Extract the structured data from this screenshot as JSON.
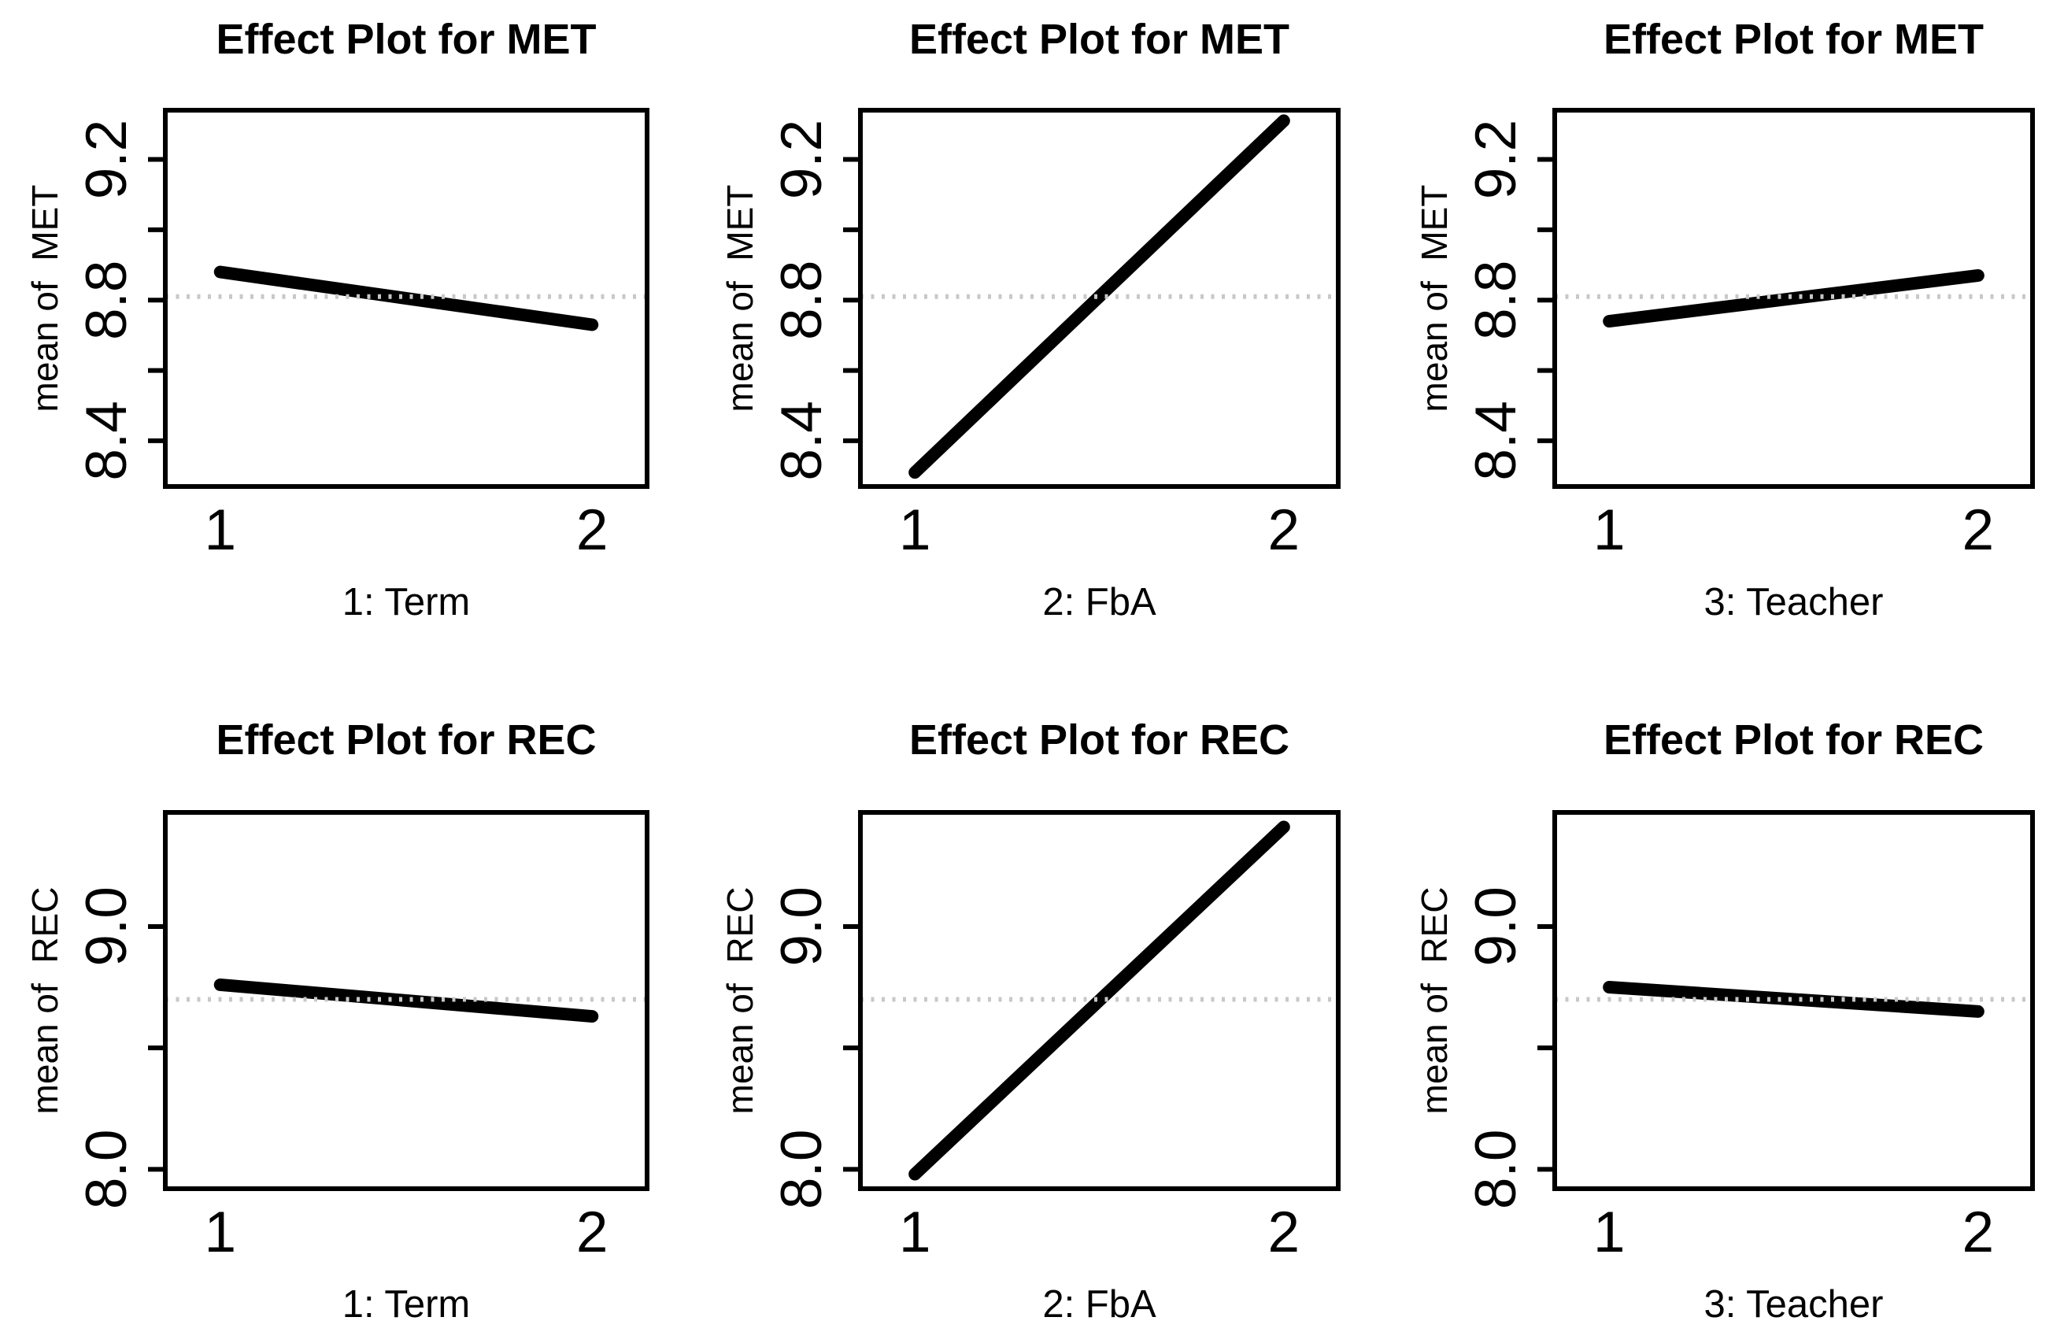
{
  "figure": {
    "background": "#ffffff",
    "line_color": "#000000",
    "box_color": "#000000",
    "grand_mean_line_color": "#c8c8c8"
  },
  "chart_data": [
    {
      "type": "line",
      "title": "Effect Plot for MET",
      "xlabel": "1: Term",
      "ylabel": "mean of  MET",
      "x_categories": [
        "1",
        "2"
      ],
      "values": [
        8.88,
        8.73
      ],
      "grand_mean": 8.81,
      "ylim": [
        8.27,
        9.34
      ],
      "yticks": [
        8.4,
        8.6,
        8.8,
        9.0,
        9.2
      ],
      "ytick_labels": [
        "8.4",
        "",
        "8.8",
        "",
        "9.2"
      ],
      "grid": "grand-mean dotted line only",
      "legend": "none"
    },
    {
      "type": "line",
      "title": "Effect Plot for MET",
      "xlabel": "2: FbA",
      "ylabel": "mean of  MET",
      "x_categories": [
        "1",
        "2"
      ],
      "values": [
        8.31,
        9.31
      ],
      "grand_mean": 8.81,
      "ylim": [
        8.27,
        9.34
      ],
      "yticks": [
        8.4,
        8.6,
        8.8,
        9.0,
        9.2
      ],
      "ytick_labels": [
        "8.4",
        "",
        "8.8",
        "",
        "9.2"
      ],
      "grid": "grand-mean dotted line only",
      "legend": "none"
    },
    {
      "type": "line",
      "title": "Effect Plot for MET",
      "xlabel": "3: Teacher",
      "ylabel": "mean of  MET",
      "x_categories": [
        "1",
        "2"
      ],
      "values": [
        8.74,
        8.87
      ],
      "grand_mean": 8.81,
      "ylim": [
        8.27,
        9.34
      ],
      "yticks": [
        8.4,
        8.6,
        8.8,
        9.0,
        9.2
      ],
      "ytick_labels": [
        "8.4",
        "",
        "8.8",
        "",
        "9.2"
      ],
      "grid": "grand-mean dotted line only",
      "legend": "none"
    },
    {
      "type": "line",
      "title": "Effect Plot for REC",
      "xlabel": "1: Term",
      "ylabel": "mean of  REC",
      "x_categories": [
        "1",
        "2"
      ],
      "values": [
        8.76,
        8.63
      ],
      "grand_mean": 8.7,
      "ylim": [
        7.92,
        9.47
      ],
      "yticks": [
        8.0,
        8.5,
        9.0
      ],
      "ytick_labels": [
        "8.0",
        "",
        "9.0"
      ],
      "grid": "grand-mean dotted line only",
      "legend": "none"
    },
    {
      "type": "line",
      "title": "Effect Plot for REC",
      "xlabel": "2: FbA",
      "ylabel": "mean of  REC",
      "x_categories": [
        "1",
        "2"
      ],
      "values": [
        7.98,
        9.41
      ],
      "grand_mean": 8.7,
      "ylim": [
        7.92,
        9.47
      ],
      "yticks": [
        8.0,
        8.5,
        9.0
      ],
      "ytick_labels": [
        "8.0",
        "",
        "9.0"
      ],
      "grid": "grand-mean dotted line only",
      "legend": "none"
    },
    {
      "type": "line",
      "title": "Effect Plot for REC",
      "xlabel": "3: Teacher",
      "ylabel": "mean of  REC",
      "x_categories": [
        "1",
        "2"
      ],
      "values": [
        8.75,
        8.65
      ],
      "grand_mean": 8.7,
      "ylim": [
        7.92,
        9.47
      ],
      "yticks": [
        8.0,
        8.5,
        9.0
      ],
      "ytick_labels": [
        "8.0",
        "",
        "9.0"
      ],
      "grid": "grand-mean dotted line only",
      "legend": "none"
    }
  ]
}
